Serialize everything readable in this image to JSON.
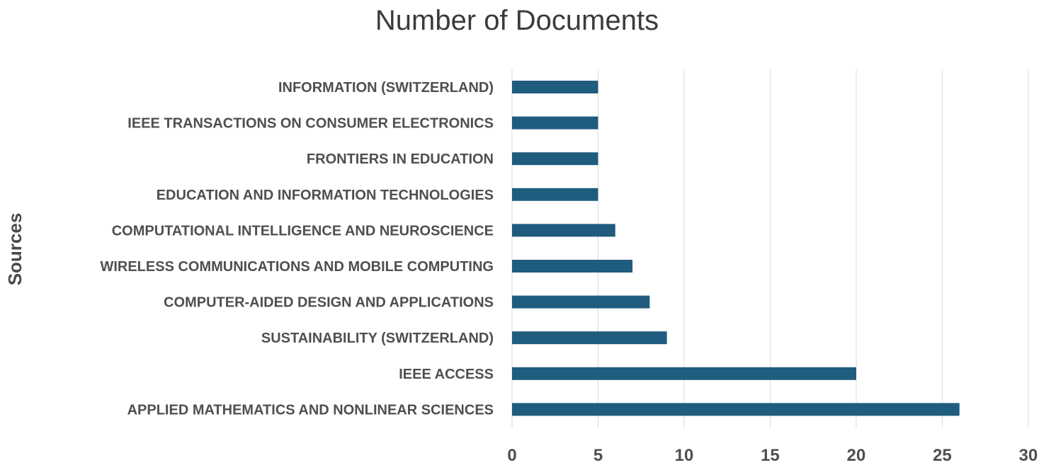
{
  "chart_data": {
    "type": "bar",
    "orientation": "horizontal",
    "title": "Number of Documents",
    "ylabel": "Sources",
    "xlabel": "",
    "categories": [
      "INFORMATION (SWITZERLAND)",
      "IEEE TRANSACTIONS ON CONSUMER ELECTRONICS",
      "FRONTIERS IN EDUCATION",
      "EDUCATION AND INFORMATION TECHNOLOGIES",
      "COMPUTATIONAL INTELLIGENCE AND NEUROSCIENCE",
      "WIRELESS COMMUNICATIONS AND MOBILE COMPUTING",
      "COMPUTER-AIDED DESIGN AND APPLICATIONS",
      "SUSTAINABILITY (SWITZERLAND)",
      "IEEE ACCESS",
      "APPLIED MATHEMATICS AND NONLINEAR SCIENCES"
    ],
    "values": [
      5,
      5,
      5,
      5,
      6,
      7,
      8,
      9,
      20,
      26
    ],
    "xlim": [
      0,
      30
    ],
    "xticks": [
      0,
      5,
      10,
      15,
      20,
      25,
      30
    ],
    "grid": true,
    "legend": "none",
    "bar_color": "#1f5c7e"
  }
}
